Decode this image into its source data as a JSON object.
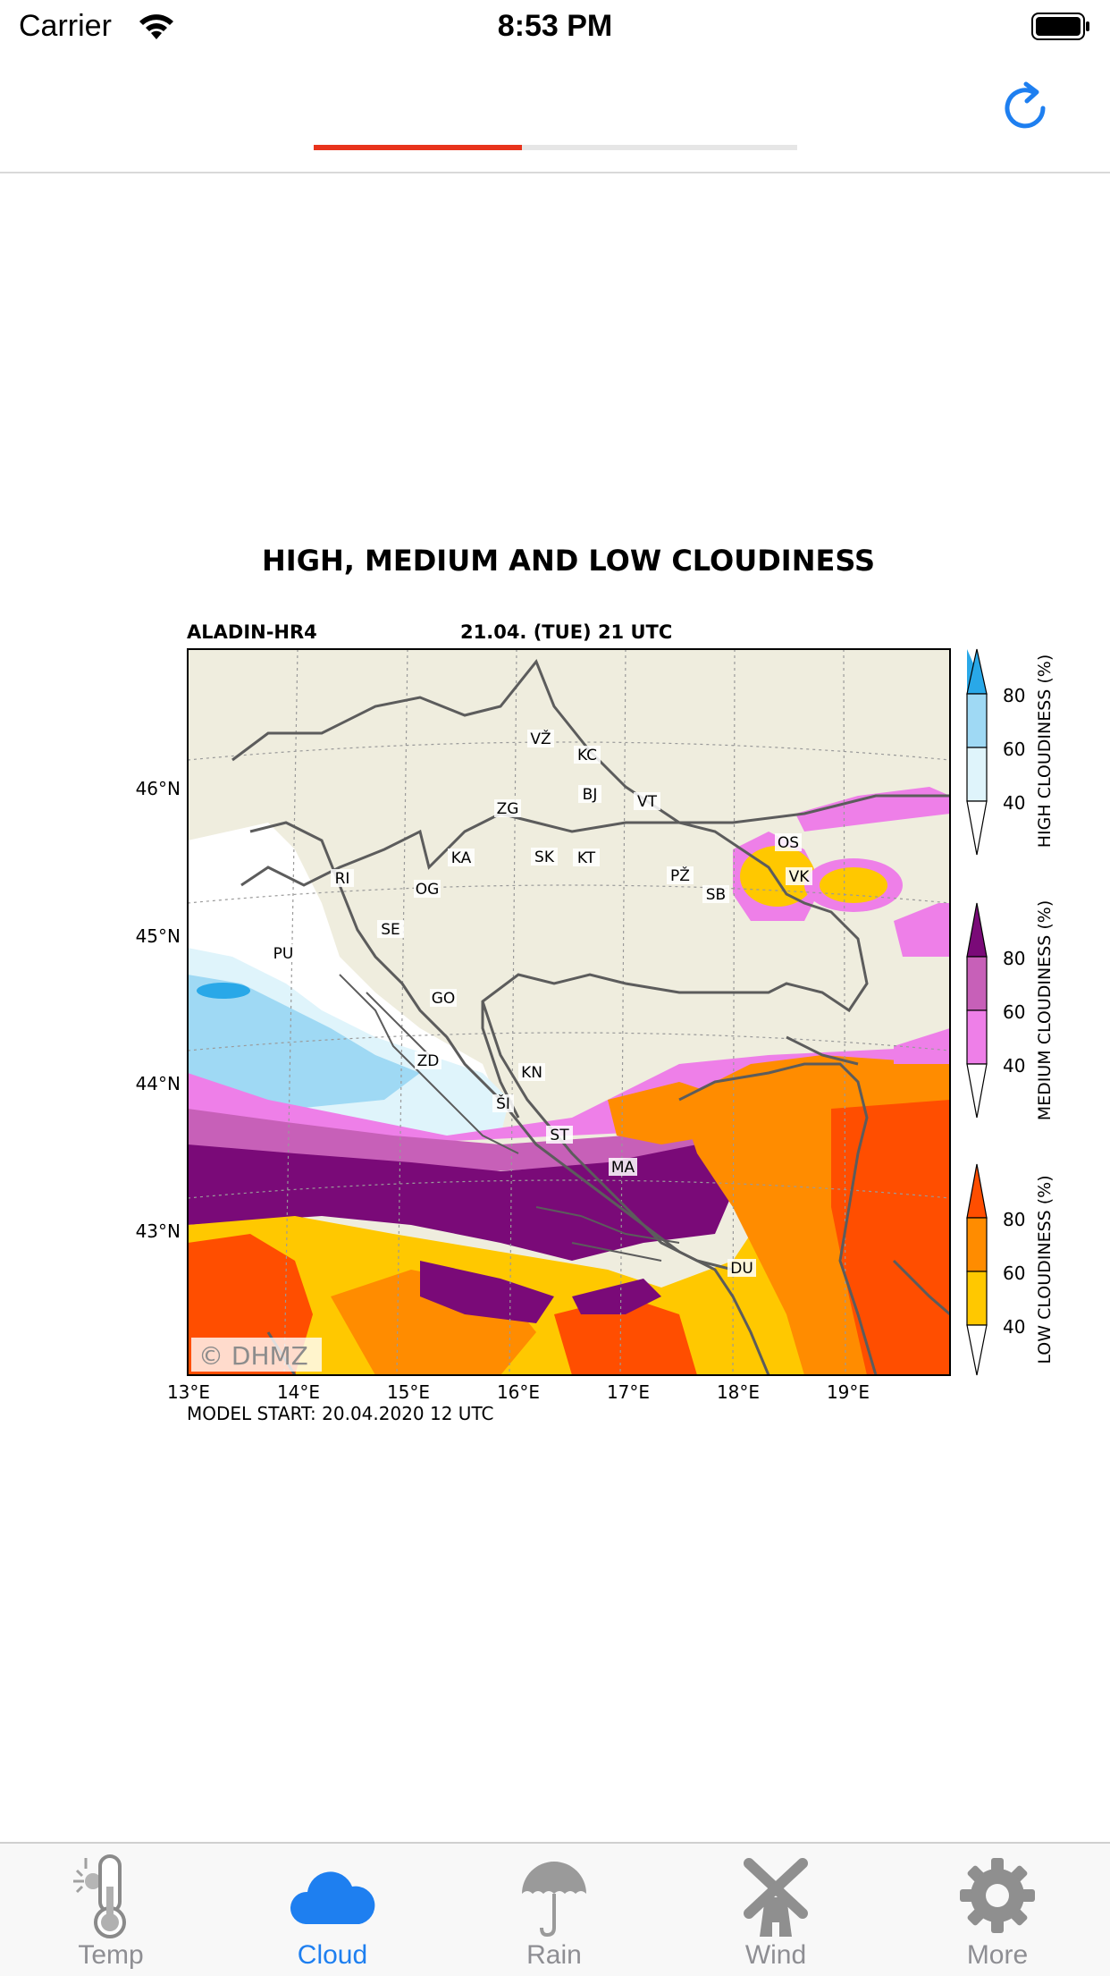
{
  "status_bar": {
    "carrier": "Carrier",
    "time": "8:53 PM"
  },
  "nav": {
    "progress_fraction": 0.43,
    "progress_color": "#e8331c",
    "refresh_icon": "refresh-icon"
  },
  "chart": {
    "title": "HIGH, MEDIUM AND LOW CLOUDINESS",
    "model": "ALADIN-HR4",
    "valid_time": "21.04. (TUE) 21 UTC",
    "model_start": "MODEL START: 20.04.2020 12 UTC",
    "watermark": "© DHMZ",
    "x_ticks": [
      "13°E",
      "14°E",
      "15°E",
      "16°E",
      "17°E",
      "18°E",
      "19°E"
    ],
    "y_ticks": [
      "46°N",
      "45°N",
      "44°N",
      "43°N"
    ],
    "city_labels": [
      "VŽ",
      "KC",
      "BJ",
      "ZG",
      "VT",
      "OS",
      "KA",
      "SK",
      "KT",
      "PŽ",
      "VK",
      "RI",
      "OG",
      "SB",
      "SE",
      "PU",
      "GO",
      "ZD",
      "KN",
      "ŠI",
      "ST",
      "MA",
      "DU"
    ],
    "colorbars": [
      {
        "label": "HIGH CLOUDINESS (%)",
        "ticks": [
          "80",
          "60",
          "40"
        ],
        "colors": [
          "#29a8e8",
          "#9fd9f4",
          "#dff4fb"
        ]
      },
      {
        "label": "MEDIUM CLOUDINESS (%)",
        "ticks": [
          "80",
          "60",
          "40"
        ],
        "colors": [
          "#7a0a78",
          "#c760b8",
          "#ee7fe8"
        ]
      },
      {
        "label": "LOW CLOUDINESS (%)",
        "ticks": [
          "80",
          "60",
          "40"
        ],
        "colors": [
          "#ff4e00",
          "#ff8c00",
          "#ffc800"
        ]
      }
    ]
  },
  "tabbar": {
    "tabs": [
      {
        "label": "Temp",
        "icon": "thermometer-sun-icon",
        "active": false
      },
      {
        "label": "Cloud",
        "icon": "cloud-icon",
        "active": true
      },
      {
        "label": "Rain",
        "icon": "umbrella-icon",
        "active": false
      },
      {
        "label": "Wind",
        "icon": "windmill-icon",
        "active": false
      },
      {
        "label": "More",
        "icon": "gear-icon",
        "active": false
      }
    ],
    "active_color": "#1e7ff0",
    "inactive_color": "#8e8e93"
  }
}
